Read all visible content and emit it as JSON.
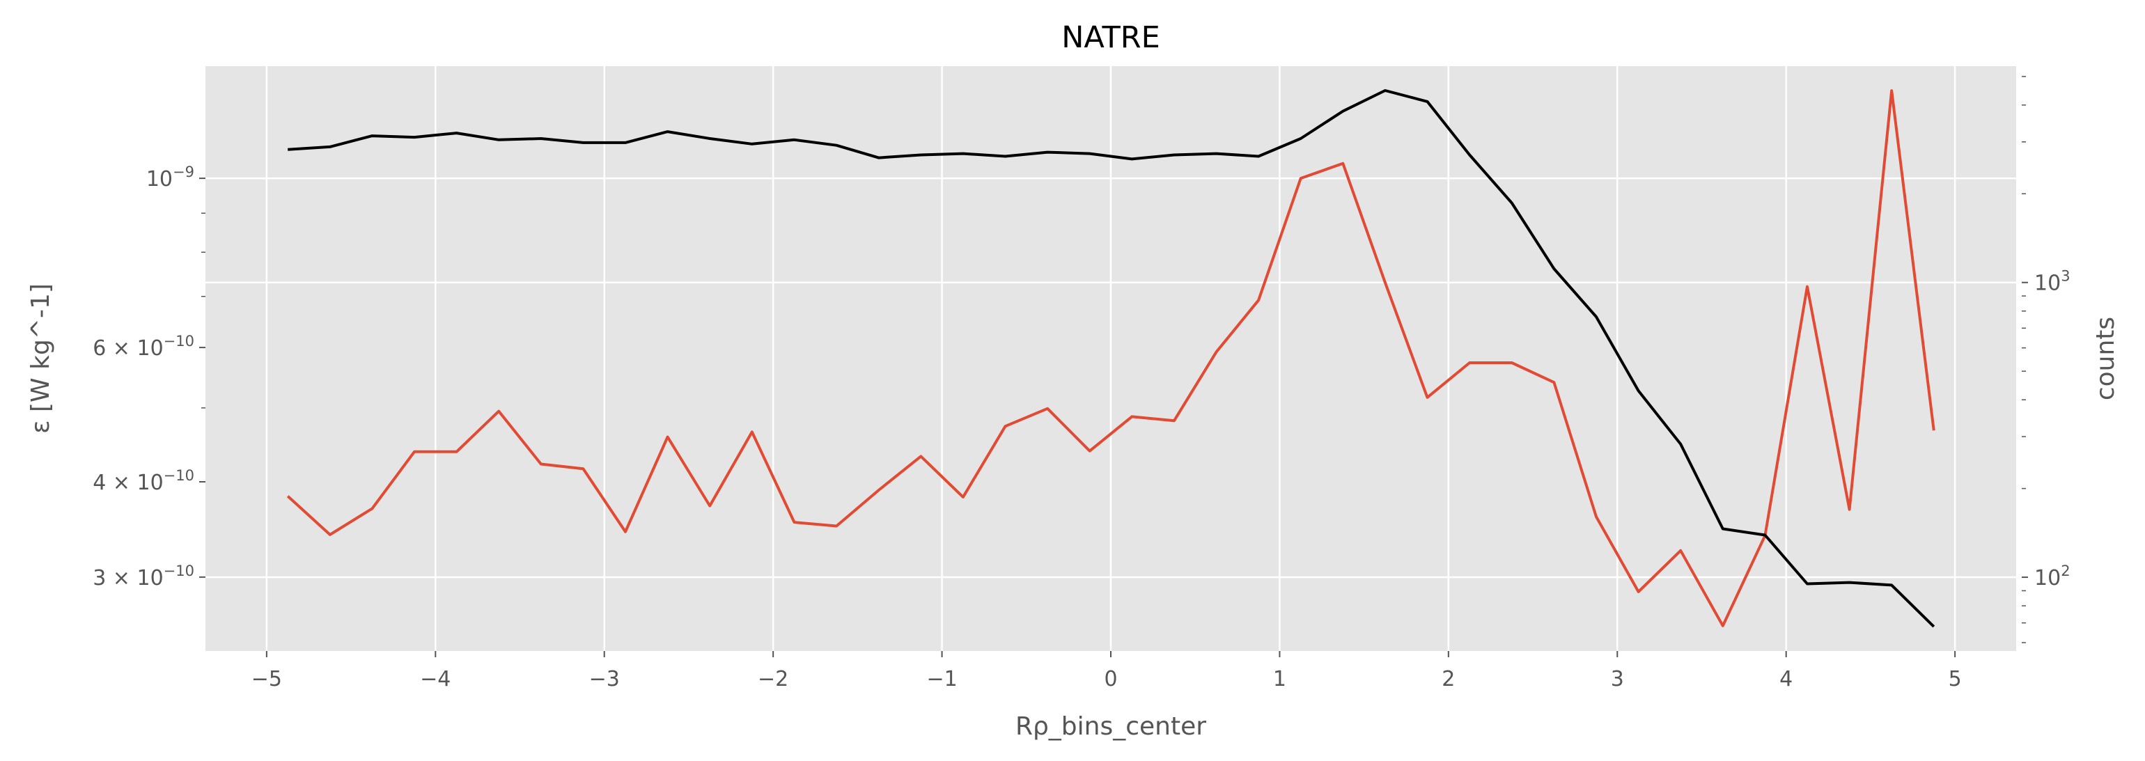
{
  "chart_data": {
    "type": "line",
    "title": "NATRE",
    "xlabel": "Rρ_bins_center",
    "ylabel": "ε [W kg^-1]",
    "y2label": "counts",
    "xlim": [
      -5.3625,
      5.3625
    ],
    "ylim": [
      2.4e-10,
      1.403e-09
    ],
    "y2lim": [
      56.2,
      5420
    ],
    "yscale": "log",
    "y2scale": "log",
    "grid": true,
    "background": "#E5E5E5",
    "x_ticks": [
      -5,
      -4,
      -3,
      -2,
      -1,
      0,
      1,
      2,
      3,
      4,
      5
    ],
    "x_tick_labels": [
      "−5",
      "−4",
      "−3",
      "−2",
      "−1",
      "0",
      "1",
      "2",
      "3",
      "4",
      "5"
    ],
    "y_ticks": [
      {
        "value": 1e-09,
        "mantissa": "",
        "base": "10",
        "exp": "−9"
      },
      {
        "value": 6e-10,
        "mantissa": "6 × ",
        "base": "10",
        "exp": "−10"
      },
      {
        "value": 4e-10,
        "mantissa": "4 × ",
        "base": "10",
        "exp": "−10"
      },
      {
        "value": 3e-10,
        "mantissa": "3 × ",
        "base": "10",
        "exp": "−10"
      }
    ],
    "y2_ticks": [
      {
        "value": 1000,
        "base": "10",
        "exp": "3"
      },
      {
        "value": 100,
        "base": "10",
        "exp": "2"
      }
    ],
    "x": [
      -4.875,
      -4.625,
      -4.375,
      -4.125,
      -3.875,
      -3.625,
      -3.375,
      -3.125,
      -2.875,
      -2.625,
      -2.375,
      -2.125,
      -1.875,
      -1.625,
      -1.375,
      -1.125,
      -0.875,
      -0.625,
      -0.375,
      -0.125,
      0.125,
      0.375,
      0.625,
      0.875,
      1.125,
      1.375,
      1.625,
      1.875,
      2.125,
      2.375,
      2.625,
      2.875,
      3.125,
      3.375,
      3.625,
      3.875,
      4.125,
      4.375,
      4.625,
      4.875
    ],
    "series": [
      {
        "axis": "left",
        "color": "#E24A33",
        "values": [
          3.83e-10,
          3.41e-10,
          3.69e-10,
          4.38e-10,
          4.38e-10,
          4.95e-10,
          4.22e-10,
          4.16e-10,
          3.44e-10,
          4.58e-10,
          3.72e-10,
          4.65e-10,
          3.54e-10,
          3.5e-10,
          3.9e-10,
          4.32e-10,
          3.82e-10,
          4.73e-10,
          4.99e-10,
          4.39e-10,
          4.87e-10,
          4.81e-10,
          5.92e-10,
          6.92e-10,
          1e-09,
          1.046e-09,
          7.3e-10,
          5.16e-10,
          5.73e-10,
          5.73e-10,
          5.4e-10,
          3.6e-10,
          2.87e-10,
          3.25e-10,
          2.59e-10,
          3.4e-10,
          7.21e-10,
          3.68e-10,
          1.303e-09,
          4.67e-10
        ]
      },
      {
        "axis": "right",
        "color": "#000000",
        "values": [
          2826,
          2886,
          3145,
          3111,
          3213,
          3048,
          3078,
          2981,
          2981,
          3248,
          3078,
          2951,
          3048,
          2920,
          2650,
          2709,
          2737,
          2680,
          2767,
          2737,
          2624,
          2709,
          2737,
          2680,
          3078,
          3812,
          4480,
          4110,
          2709,
          1861,
          1113,
          765,
          429,
          283,
          146,
          139,
          95,
          96,
          94,
          68
        ]
      }
    ]
  }
}
